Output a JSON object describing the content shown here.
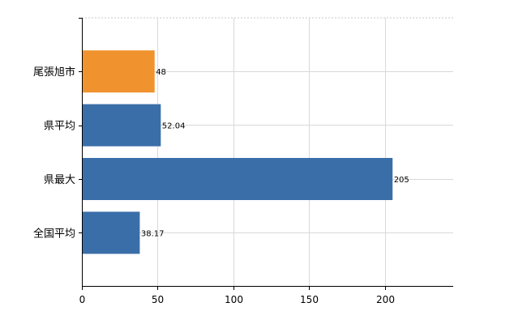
{
  "chart_data": {
    "type": "bar",
    "orientation": "horizontal",
    "categories": [
      "尾張旭市",
      "県平均",
      "県最大",
      "全国平均"
    ],
    "values": [
      48,
      52.04,
      205,
      38.17
    ],
    "value_labels": [
      "48",
      "52.04",
      "205",
      "38.17"
    ],
    "bar_colors": [
      "#f0922e",
      "#3a6ea8",
      "#3a6ea8",
      "#3a6ea8"
    ],
    "highlight_color": "#f0922e",
    "base_color": "#3a6ea8",
    "xlim": [
      0,
      245
    ],
    "x_ticks": [
      0,
      50,
      100,
      150,
      200
    ],
    "x_tick_labels": [
      "0",
      "50",
      "100",
      "150",
      "200"
    ],
    "grid": true,
    "title": "",
    "xlabel": "",
    "ylabel": ""
  }
}
